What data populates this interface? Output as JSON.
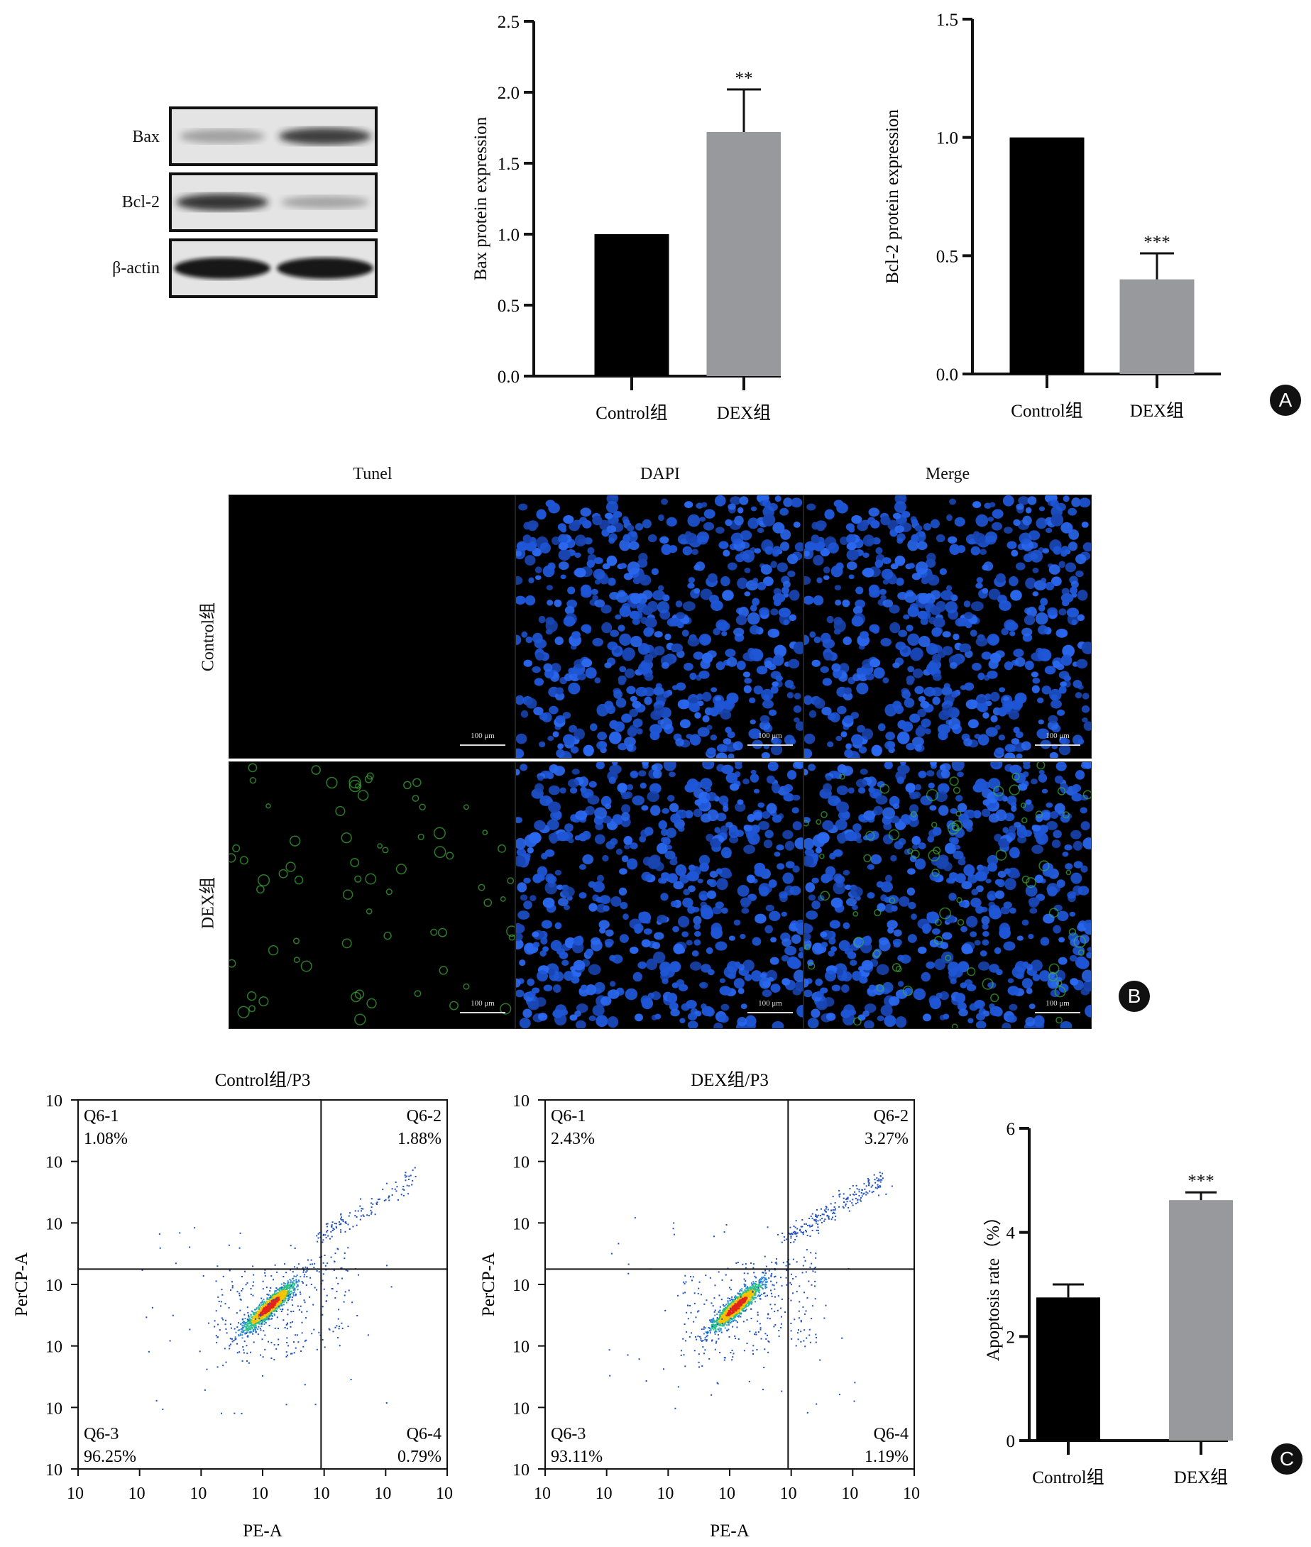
{
  "panels": {
    "A": "A",
    "B": "B",
    "C": "C"
  },
  "western_blot": {
    "rows": [
      {
        "label": "Bax",
        "bands": [
          0.35,
          0.85
        ]
      },
      {
        "label": "Bcl-2",
        "bands": [
          0.85,
          0.3
        ]
      },
      {
        "label": "β-actin",
        "bands": [
          0.95,
          0.95
        ]
      }
    ]
  },
  "chart_data": [
    {
      "type": "bar",
      "ylabel": "Bax protein expression",
      "categories": [
        "Control组",
        "DEX组"
      ],
      "values": [
        1.0,
        1.72
      ],
      "errors": [
        0,
        0.3
      ],
      "colors": [
        "#000000",
        "#97999d"
      ],
      "ylim": [
        0,
        2.5
      ],
      "yticks": [
        "0.0",
        "0.5",
        "1.0",
        "1.5",
        "2.0",
        "2.5"
      ],
      "yticks_values": [
        0,
        0.5,
        1.0,
        1.5,
        2.0,
        2.5
      ],
      "significance": [
        "",
        "**"
      ]
    },
    {
      "type": "bar",
      "ylabel": "Bcl-2 protein expression",
      "categories": [
        "Control组",
        "DEX组"
      ],
      "values": [
        1.0,
        0.4
      ],
      "errors": [
        0,
        0.11
      ],
      "colors": [
        "#000000",
        "#97999d"
      ],
      "ylim": [
        0,
        1.5
      ],
      "yticks": [
        "0.0",
        "0.5",
        "1.0",
        "1.5"
      ],
      "yticks_values": [
        0,
        0.5,
        1.0,
        1.5
      ],
      "significance": [
        "",
        "***"
      ]
    },
    {
      "type": "scatter",
      "title": "Control组/P3",
      "xlabel": "PE-A",
      "ylabel": "PerCP-A",
      "x_log_range": [
        1,
        7
      ],
      "y_log_range": [
        1,
        7
      ],
      "gate_x_log": 4.95,
      "gate_y_log": 4.25,
      "quadrants": [
        {
          "name": "Q6-1",
          "value": "1.08%"
        },
        {
          "name": "Q6-2",
          "value": "1.88%"
        },
        {
          "name": "Q6-3",
          "value": "96.25%"
        },
        {
          "name": "Q6-4",
          "value": "0.79%"
        }
      ]
    },
    {
      "type": "scatter",
      "title": "DEX组/P3",
      "xlabel": "PE-A",
      "ylabel": "PerCP-A",
      "x_log_range": [
        1,
        7
      ],
      "y_log_range": [
        1,
        7
      ],
      "gate_x_log": 4.95,
      "gate_y_log": 4.25,
      "quadrants": [
        {
          "name": "Q6-1",
          "value": "2.43%"
        },
        {
          "name": "Q6-2",
          "value": "3.27%"
        },
        {
          "name": "Q6-3",
          "value": "93.11%"
        },
        {
          "name": "Q6-4",
          "value": "1.19%"
        }
      ]
    },
    {
      "type": "bar",
      "ylabel": "Apoptosis rate（%）",
      "categories": [
        "Control组",
        "DEX组"
      ],
      "values": [
        2.75,
        4.62
      ],
      "errors": [
        0.25,
        0.15
      ],
      "colors": [
        "#000000",
        "#97999d"
      ],
      "ylim": [
        0,
        6
      ],
      "yticks": [
        "0",
        "2",
        "4",
        "6"
      ],
      "yticks_values": [
        0,
        2,
        4,
        6
      ],
      "significance": [
        "",
        "***"
      ]
    }
  ],
  "microscopy": {
    "columns": [
      "Tunel",
      "DAPI",
      "Merge"
    ],
    "rows": [
      "Control组",
      "DEX组"
    ],
    "scale_bar": "100 μm"
  }
}
